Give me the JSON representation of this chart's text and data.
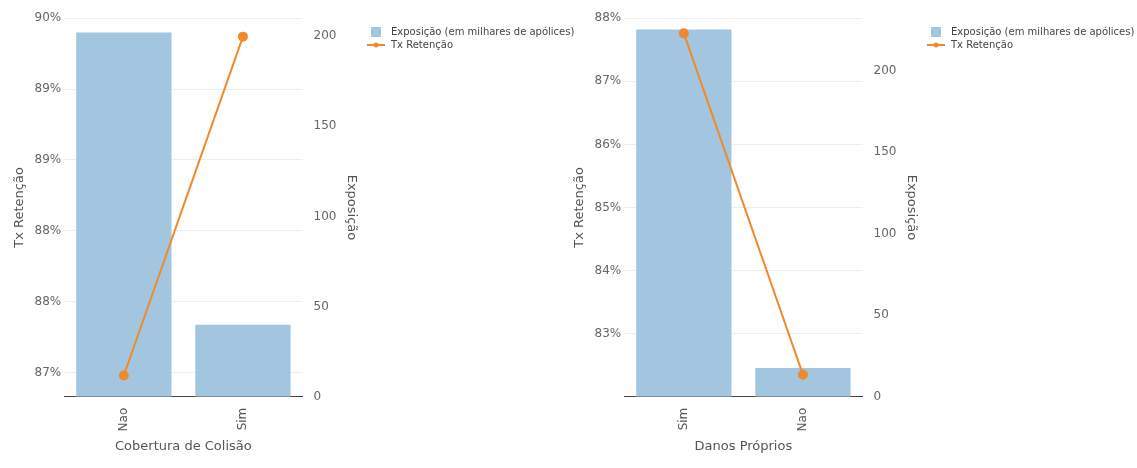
{
  "chart_data": [
    {
      "type": "bar",
      "xlabel": "Cobertura de Colisão",
      "ylabel": "Tx Retenção",
      "y2label": "Exposição",
      "categories": [
        "Nao",
        "Sim"
      ],
      "series": [
        {
          "name": "Exposição (em milhares de apólices)",
          "type": "bar",
          "axis": "y2",
          "color": "#a3c6e0",
          "values": [
            202,
            40
          ]
        },
        {
          "name": "Tx Retenção",
          "type": "line",
          "axis": "y",
          "color": "#ee8a2c",
          "values": [
            87.48,
            89.87
          ]
        }
      ],
      "ylim": [
        87.33,
        90.0
      ],
      "yticks": [
        {
          "value": 90,
          "label": "90%"
        },
        {
          "value": 89.5,
          "label": "89%"
        },
        {
          "value": 89,
          "label": "89%"
        },
        {
          "value": 88.5,
          "label": "88%"
        },
        {
          "value": 88,
          "label": "88%"
        },
        {
          "value": 87.5,
          "label": "87%"
        }
      ],
      "y2lim": [
        0,
        210
      ],
      "y2ticks": [
        0,
        50,
        100,
        150,
        200
      ],
      "grid": "y",
      "legend": "right",
      "marker": "circle"
    },
    {
      "type": "bar",
      "xlabel": "Danos Próprios",
      "ylabel": "Tx Retenção",
      "y2label": "Exposição",
      "categories": [
        "Sim",
        "Nao"
      ],
      "series": [
        {
          "name": "Exposição (em milhares de apólices)",
          "type": "bar",
          "axis": "y2",
          "color": "#a3c6e0",
          "values": [
            225,
            17.6
          ]
        },
        {
          "name": "Tx Retenção",
          "type": "line",
          "axis": "y",
          "color": "#ee8a2c",
          "values": [
            87.76,
            82.35
          ]
        }
      ],
      "ylim": [
        82.0,
        88.0
      ],
      "yticks": [
        {
          "value": 88,
          "label": "88%"
        },
        {
          "value": 87,
          "label": "87%"
        },
        {
          "value": 86,
          "label": "86%"
        },
        {
          "value": 85,
          "label": "85%"
        },
        {
          "value": 84,
          "label": "84%"
        },
        {
          "value": 83,
          "label": "83%"
        }
      ],
      "y2lim": [
        0,
        232
      ],
      "y2ticks": [
        0,
        50,
        100,
        150,
        200
      ],
      "grid": "y",
      "legend": "right",
      "marker": "circle"
    }
  ]
}
